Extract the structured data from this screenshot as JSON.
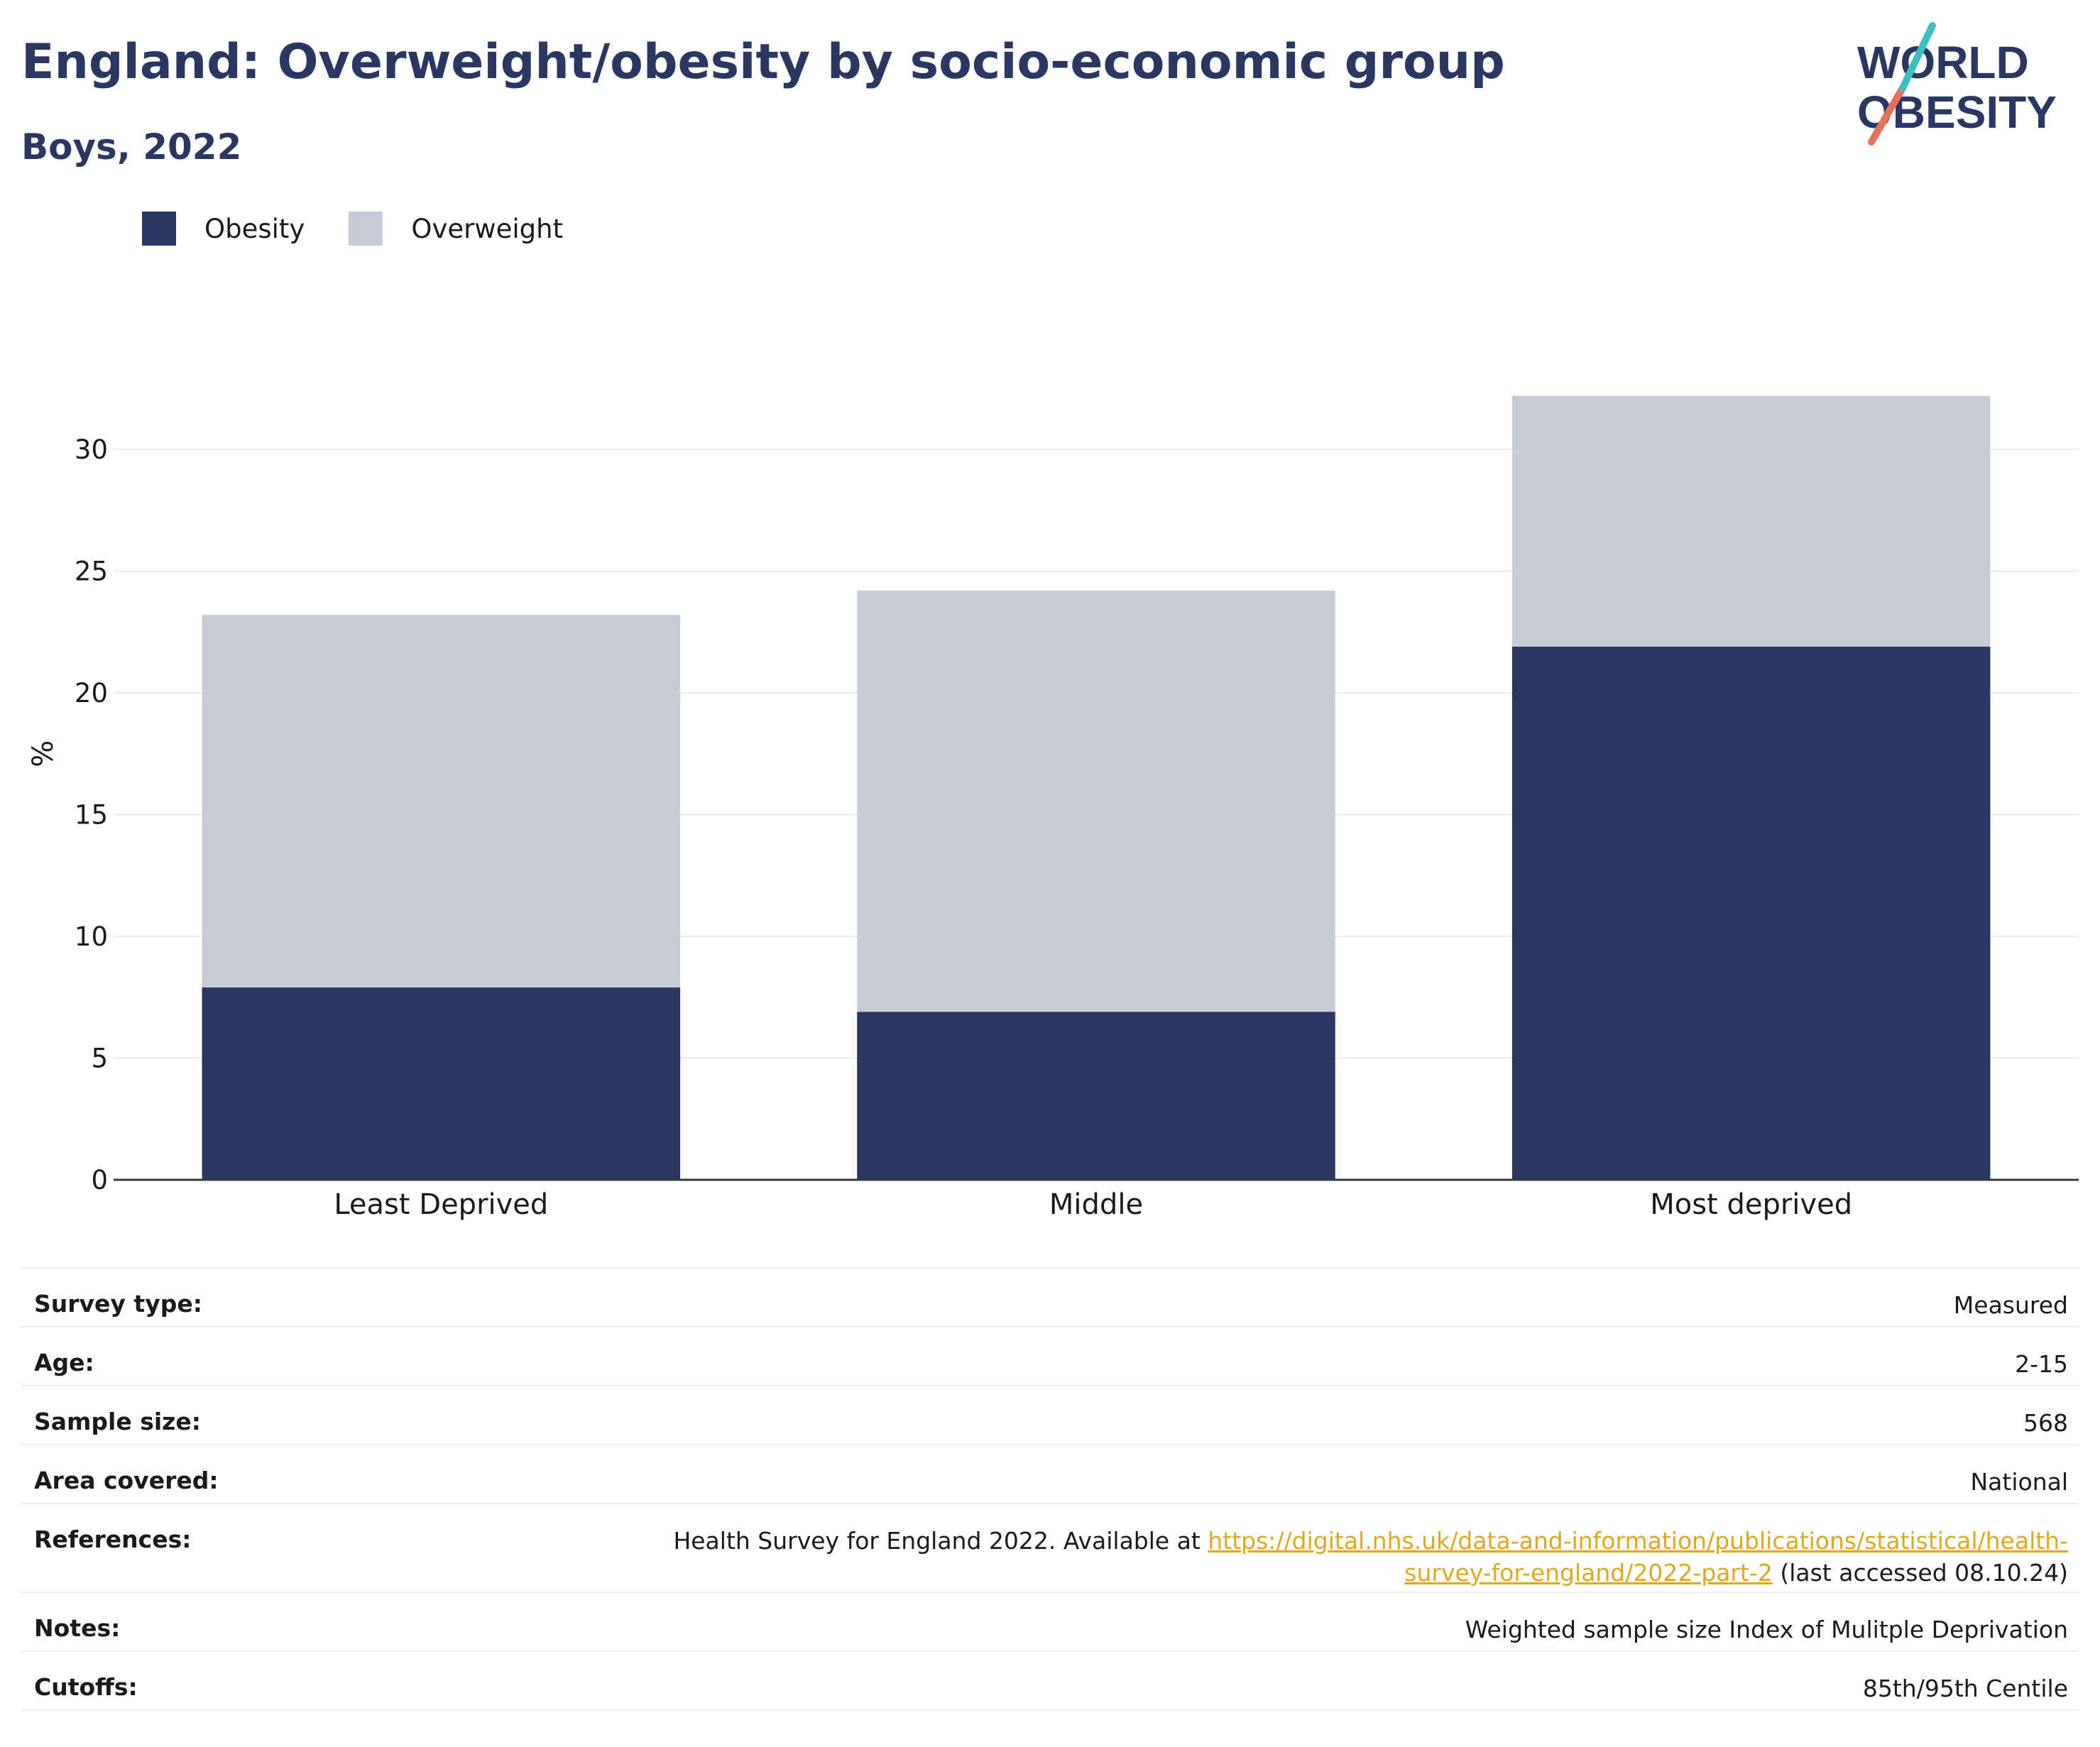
{
  "header": {
    "title": "England: Overweight/obesity by socio-economic group",
    "subtitle": "Boys, 2022"
  },
  "logo": {
    "line1": "WORLD",
    "line2": "OBESITY",
    "text_color": "#2b3763",
    "slash_colors": [
      "#e8705a",
      "#3bbfc1"
    ]
  },
  "legend": {
    "placement": "top-left",
    "items": [
      {
        "label": "Obesity",
        "color": "#2b3763"
      },
      {
        "label": "Overweight",
        "color": "#c9cbd6"
      }
    ]
  },
  "chart_data": {
    "type": "bar",
    "stacked": true,
    "categories": [
      "Least Deprived",
      "Middle",
      "Most deprived"
    ],
    "series": [
      {
        "name": "Obesity",
        "color": "#2b3763",
        "values": [
          7.9,
          6.9,
          21.9
        ]
      },
      {
        "name": "Overweight",
        "color": "#c9cbd6",
        "values": [
          15.3,
          17.3,
          10.3
        ]
      }
    ],
    "ylabel": "%",
    "ylim": [
      0,
      35
    ],
    "yticks": [
      0,
      5,
      10,
      15,
      20,
      25,
      30
    ],
    "grid": true
  },
  "meta": {
    "rows": [
      {
        "label": "Survey type:",
        "value": "Measured"
      },
      {
        "label": "Age:",
        "value": "2-15"
      },
      {
        "label": "Sample size:",
        "value": "568"
      },
      {
        "label": "Area covered:",
        "value": "National"
      },
      {
        "label": "Notes:",
        "value": "Weighted sample size Index of Mulitple Deprivation"
      },
      {
        "label": "Cutoffs:",
        "value": "85th/95th Centile"
      }
    ],
    "references": {
      "label": "References:",
      "prefix": "Health Survey for England 2022. Available at ",
      "link": "https://digital.nhs.uk/data-and-information/publications/statistical/health-survey-for-england/2022-part-2",
      "suffix": " (last accessed 08.10.24)"
    }
  }
}
